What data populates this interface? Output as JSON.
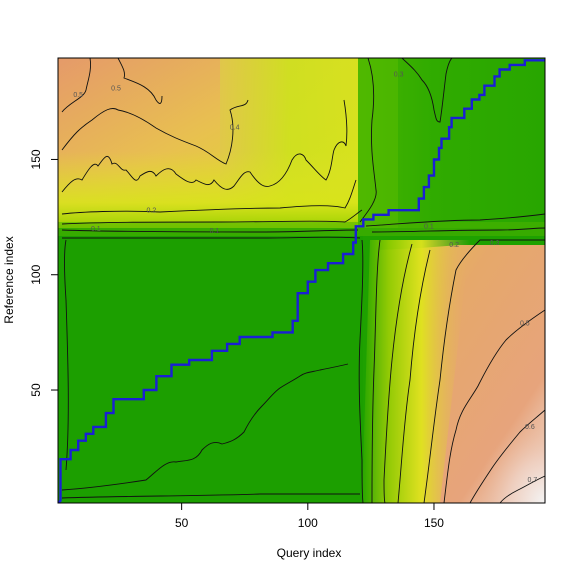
{
  "chart_data": {
    "type": "heatmap",
    "xlabel": "Query index",
    "ylabel": "Reference index",
    "xlim": [
      1,
      194
    ],
    "ylim": [
      1,
      194
    ],
    "x_ticks": [
      50,
      100,
      150
    ],
    "y_ticks": [
      50,
      100,
      150
    ],
    "x_tick_labels": [
      "50",
      "100",
      "150"
    ],
    "y_tick_labels": [
      "50",
      "100",
      "150"
    ],
    "grid": false,
    "colors": {
      "low": "#18a000",
      "mid_low": "#6cc400",
      "mid": "#dde51a",
      "mid_high": "#e8b84a",
      "high": "#e39a6e",
      "max": "#f3f3f3",
      "path": "#1a1fd6"
    },
    "contour_labels": [
      {
        "text": "0.5",
        "x": 9,
        "y": 177
      },
      {
        "text": "0.5",
        "x": 24,
        "y": 180
      },
      {
        "text": "0.4",
        "x": 71,
        "y": 163
      },
      {
        "text": "0.3",
        "x": 136,
        "y": 186
      },
      {
        "text": "0.2",
        "x": 38,
        "y": 127
      },
      {
        "text": "0.1",
        "x": 16,
        "y": 119
      },
      {
        "text": "0.1",
        "x": 63,
        "y": 118
      },
      {
        "text": "0.1",
        "x": 148,
        "y": 120
      },
      {
        "text": "0.2",
        "x": 158,
        "y": 112
      },
      {
        "text": "0.3",
        "x": 174,
        "y": 113
      },
      {
        "text": "0.5",
        "x": 186,
        "y": 78
      },
      {
        "text": "0.6",
        "x": 188,
        "y": 33
      },
      {
        "text": "0.7",
        "x": 189,
        "y": 10
      }
    ],
    "warping_path": [
      [
        1,
        1
      ],
      [
        2,
        2
      ],
      [
        2,
        20
      ],
      [
        6,
        20
      ],
      [
        6,
        24
      ],
      [
        9,
        24
      ],
      [
        9,
        28
      ],
      [
        12,
        28
      ],
      [
        12,
        31
      ],
      [
        15,
        31
      ],
      [
        15,
        34
      ],
      [
        20,
        34
      ],
      [
        20,
        40
      ],
      [
        23,
        40
      ],
      [
        23,
        46
      ],
      [
        35,
        46
      ],
      [
        35,
        50
      ],
      [
        40,
        50
      ],
      [
        40,
        56
      ],
      [
        46,
        56
      ],
      [
        46,
        61
      ],
      [
        53,
        61
      ],
      [
        53,
        63
      ],
      [
        62,
        63
      ],
      [
        62,
        67
      ],
      [
        68,
        67
      ],
      [
        68,
        70
      ],
      [
        73,
        70
      ],
      [
        73,
        73
      ],
      [
        86,
        73
      ],
      [
        86,
        75
      ],
      [
        94,
        75
      ],
      [
        94,
        80
      ],
      [
        96,
        80
      ],
      [
        96,
        92
      ],
      [
        100,
        92
      ],
      [
        100,
        97
      ],
      [
        103,
        97
      ],
      [
        103,
        102
      ],
      [
        108,
        102
      ],
      [
        108,
        105
      ],
      [
        114,
        105
      ],
      [
        114,
        109
      ],
      [
        118,
        109
      ],
      [
        118,
        114
      ],
      [
        119,
        114
      ],
      [
        119,
        121
      ],
      [
        122,
        121
      ],
      [
        122,
        124
      ],
      [
        126,
        124
      ],
      [
        126,
        126
      ],
      [
        132,
        126
      ],
      [
        132,
        128
      ],
      [
        144,
        128
      ],
      [
        144,
        133
      ],
      [
        146,
        133
      ],
      [
        146,
        138
      ],
      [
        148,
        138
      ],
      [
        148,
        143
      ],
      [
        150,
        143
      ],
      [
        150,
        150
      ],
      [
        152,
        150
      ],
      [
        152,
        155
      ],
      [
        153,
        155
      ],
      [
        153,
        159
      ],
      [
        156,
        159
      ],
      [
        156,
        164
      ],
      [
        157,
        164
      ],
      [
        157,
        168
      ],
      [
        162,
        168
      ],
      [
        162,
        172
      ],
      [
        165,
        172
      ],
      [
        165,
        176
      ],
      [
        168,
        176
      ],
      [
        168,
        178
      ],
      [
        170,
        178
      ],
      [
        170,
        182
      ],
      [
        174,
        182
      ],
      [
        174,
        186
      ],
      [
        176,
        186
      ],
      [
        176,
        189
      ],
      [
        180,
        189
      ],
      [
        180,
        191
      ],
      [
        186,
        191
      ],
      [
        186,
        193
      ],
      [
        194,
        193
      ]
    ]
  }
}
